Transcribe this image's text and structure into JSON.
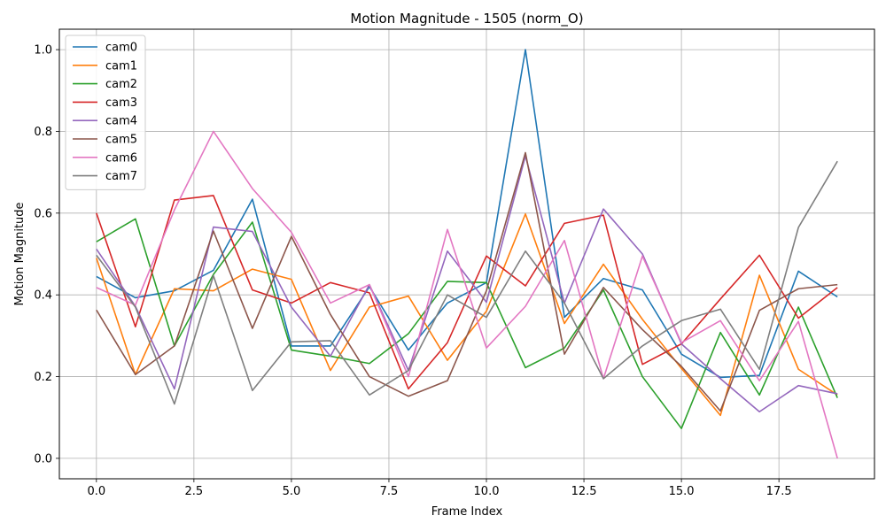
{
  "chart_data": {
    "type": "line",
    "title": "Motion Magnitude - 1505 (norm_O)",
    "xlabel": "Frame Index",
    "ylabel": "Motion Magnitude",
    "xlim": [
      -0.95,
      19.95
    ],
    "ylim": [
      -0.05,
      1.05
    ],
    "xticks": [
      0.0,
      2.5,
      5.0,
      7.5,
      10.0,
      12.5,
      15.0,
      17.5
    ],
    "xtick_labels": [
      "0.0",
      "2.5",
      "5.0",
      "7.5",
      "10.0",
      "12.5",
      "15.0",
      "17.5"
    ],
    "yticks": [
      0.0,
      0.2,
      0.4,
      0.6,
      0.8,
      1.0
    ],
    "ytick_labels": [
      "0.0",
      "0.2",
      "0.4",
      "0.6",
      "0.8",
      "1.0"
    ],
    "grid": true,
    "legend_position": "top-left",
    "x": [
      0,
      1,
      2,
      3,
      4,
      5,
      6,
      7,
      8,
      9,
      10,
      11,
      12,
      13,
      14,
      15,
      16,
      17,
      18,
      19
    ],
    "series": [
      {
        "name": "cam0",
        "color": "#1f77b4",
        "values": [
          0.445,
          0.393,
          0.41,
          0.46,
          0.634,
          0.275,
          0.275,
          0.42,
          0.265,
          0.38,
          0.43,
          1.0,
          0.345,
          0.44,
          0.412,
          0.255,
          0.198,
          0.203,
          0.458,
          0.395
        ]
      },
      {
        "name": "cam1",
        "color": "#ff7f0e",
        "values": [
          0.49,
          0.205,
          0.415,
          0.41,
          0.463,
          0.438,
          0.215,
          0.37,
          0.397,
          0.24,
          0.36,
          0.598,
          0.33,
          0.475,
          0.34,
          0.22,
          0.105,
          0.448,
          0.218,
          0.155
        ]
      },
      {
        "name": "cam2",
        "color": "#2ca02c",
        "values": [
          0.53,
          0.586,
          0.275,
          0.45,
          0.578,
          0.265,
          0.25,
          0.232,
          0.305,
          0.433,
          0.43,
          0.222,
          0.27,
          0.412,
          0.2,
          0.073,
          0.308,
          0.155,
          0.37,
          0.148
        ]
      },
      {
        "name": "cam3",
        "color": "#d62728",
        "values": [
          0.6,
          0.322,
          0.632,
          0.643,
          0.412,
          0.38,
          0.43,
          0.405,
          0.17,
          0.283,
          0.495,
          0.422,
          0.575,
          0.595,
          0.23,
          0.28,
          0.39,
          0.497,
          0.343,
          0.418
        ]
      },
      {
        "name": "cam4",
        "color": "#9467bd",
        "values": [
          0.512,
          0.372,
          0.17,
          0.566,
          0.555,
          0.37,
          0.25,
          0.425,
          0.215,
          0.507,
          0.382,
          0.74,
          0.38,
          0.61,
          0.5,
          0.28,
          0.195,
          0.114,
          0.178,
          0.158
        ]
      },
      {
        "name": "cam5",
        "color": "#8c564b",
        "values": [
          0.363,
          0.205,
          0.275,
          0.556,
          0.318,
          0.543,
          0.352,
          0.2,
          0.152,
          0.19,
          0.41,
          0.748,
          0.255,
          0.418,
          0.315,
          0.225,
          0.116,
          0.362,
          0.415,
          0.425
        ]
      },
      {
        "name": "cam6",
        "color": "#e377c2",
        "values": [
          0.418,
          0.375,
          0.608,
          0.8,
          0.66,
          0.553,
          0.38,
          0.425,
          0.2,
          0.56,
          0.27,
          0.372,
          0.533,
          0.195,
          0.495,
          0.283,
          0.337,
          0.19,
          0.335,
          0.0
        ]
      },
      {
        "name": "cam7",
        "color": "#7f7f7f",
        "values": [
          0.497,
          0.37,
          0.133,
          0.447,
          0.166,
          0.285,
          0.288,
          0.155,
          0.215,
          0.4,
          0.345,
          0.507,
          0.38,
          0.195,
          0.275,
          0.337,
          0.365,
          0.218,
          0.565,
          0.727
        ]
      }
    ]
  }
}
